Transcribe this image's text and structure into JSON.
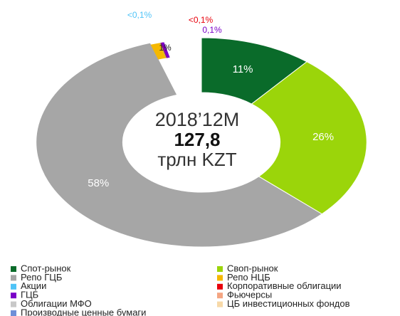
{
  "chart_data": {
    "type": "donut",
    "center_text": [
      "2018’12M",
      "127,8",
      "трлн KZT"
    ],
    "categories": [
      "Спот-рынок",
      "Своп-рынок",
      "Репо ГЦБ",
      "Репо НЦБ",
      "Акции",
      "Корпоративные облигации",
      "ГЦБ",
      "Фьючерсы",
      "Облигации МФО",
      "ЦБ инвестиционных фондов",
      "Производные ценные бумаги"
    ],
    "colors": [
      "#0a6b2a",
      "#9bd50a",
      "#a6a6a6",
      "#f5b800",
      "#4fc3f7",
      "#e8000b",
      "#7a00c8",
      "#f4a582",
      "#c8c8c8",
      "#f7d9a8",
      "#6f8fd8"
    ],
    "values": [
      11,
      26,
      58,
      1,
      0.05,
      0.05,
      0.1,
      null,
      null,
      null,
      null
    ],
    "value_labels": [
      "11%",
      "26%",
      "58%",
      "1%",
      "<0,1%",
      "<0,1%",
      "0,1%",
      null,
      null,
      null,
      null
    ]
  }
}
